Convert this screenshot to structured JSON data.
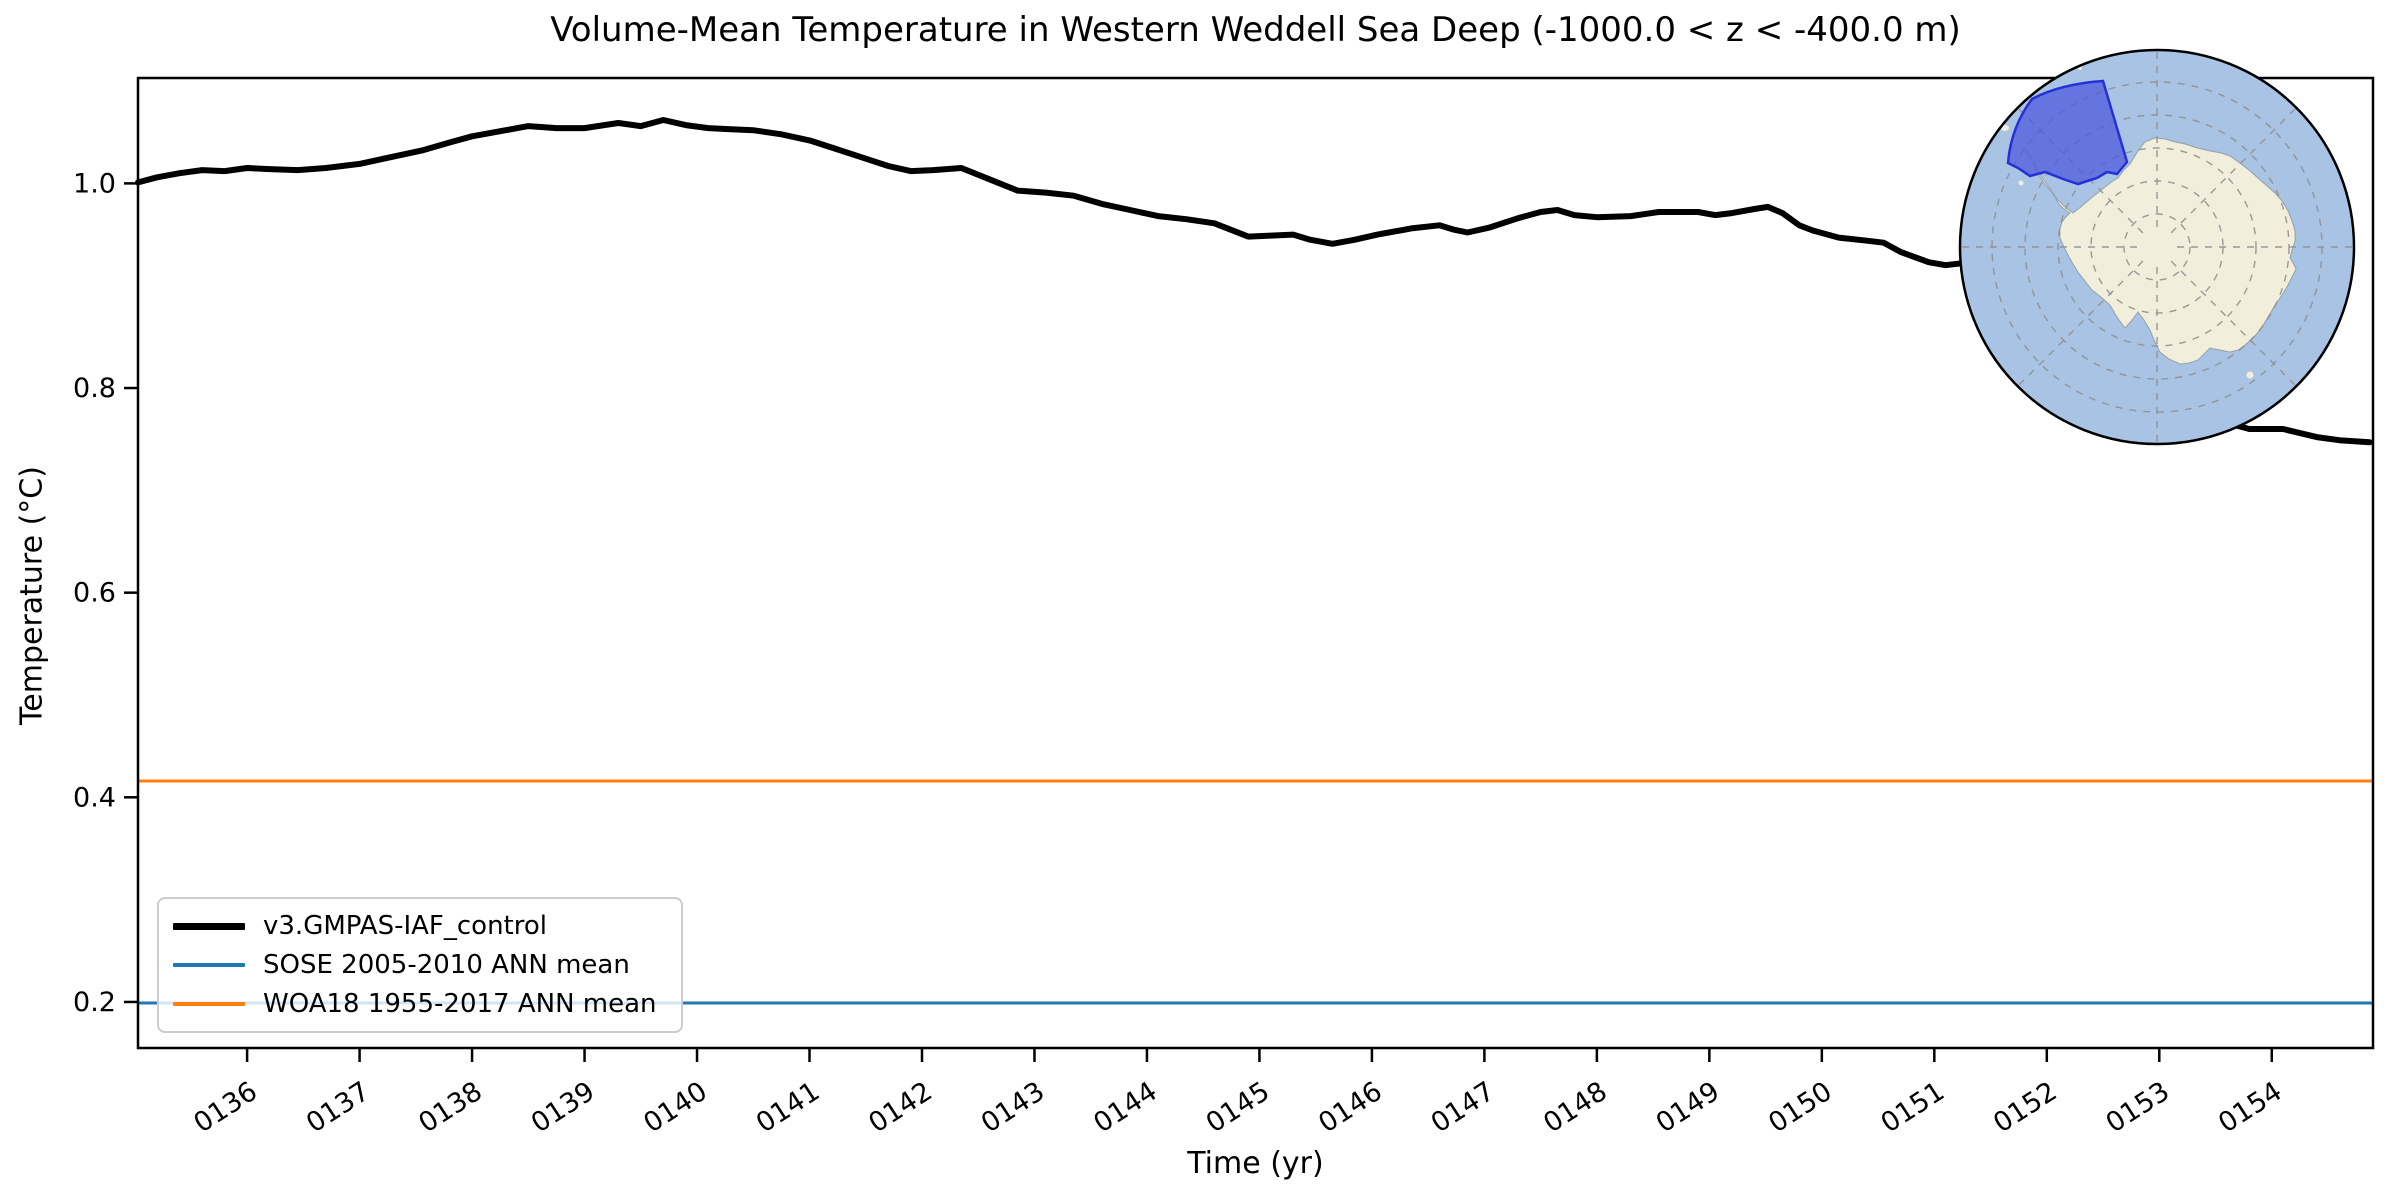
{
  "chart_data": {
    "type": "line",
    "title": "Volume-Mean Temperature in Western Weddell Sea Deep (-1000.0 < z < -400.0 m)",
    "xlabel": "Time (yr)",
    "ylabel": "Temperature (°C)",
    "xlim": [
      135.03,
      154.9
    ],
    "ylim": [
      0.155,
      1.103
    ],
    "grid": false,
    "legend_position": "lower left",
    "x_tick_values": [
      136,
      137,
      138,
      139,
      140,
      141,
      142,
      143,
      144,
      145,
      146,
      147,
      148,
      149,
      150,
      151,
      152,
      153,
      154
    ],
    "x_tick_labels": [
      "0136",
      "0137",
      "0138",
      "0139",
      "0140",
      "0141",
      "0142",
      "0143",
      "0144",
      "0145",
      "0146",
      "0147",
      "0148",
      "0149",
      "0150",
      "0151",
      "0152",
      "0153",
      "0154"
    ],
    "y_tick_values": [
      0.2,
      0.4,
      0.6,
      0.8,
      1.0
    ],
    "y_tick_labels": [
      "0.2",
      "0.4",
      "0.6",
      "0.8",
      "1.0"
    ],
    "series": [
      {
        "name": "v3.GMPAS-IAF_control",
        "color": "#000000",
        "width": 6,
        "points": [
          [
            135.03,
            1.001
          ],
          [
            135.2,
            1.006
          ],
          [
            135.4,
            1.01
          ],
          [
            135.6,
            1.013
          ],
          [
            135.8,
            1.012
          ],
          [
            136.0,
            1.015
          ],
          [
            136.2,
            1.014
          ],
          [
            136.45,
            1.013
          ],
          [
            136.7,
            1.015
          ],
          [
            137.0,
            1.019
          ],
          [
            137.25,
            1.025
          ],
          [
            137.55,
            1.032
          ],
          [
            137.8,
            1.04
          ],
          [
            138.0,
            1.046
          ],
          [
            138.3,
            1.052
          ],
          [
            138.5,
            1.056
          ],
          [
            138.75,
            1.054
          ],
          [
            139.0,
            1.054
          ],
          [
            139.3,
            1.059
          ],
          [
            139.5,
            1.056
          ],
          [
            139.7,
            1.062
          ],
          [
            139.9,
            1.057
          ],
          [
            140.1,
            1.054
          ],
          [
            140.3,
            1.053
          ],
          [
            140.5,
            1.052
          ],
          [
            140.75,
            1.048
          ],
          [
            141.0,
            1.042
          ],
          [
            141.2,
            1.035
          ],
          [
            141.45,
            1.026
          ],
          [
            141.7,
            1.017
          ],
          [
            141.9,
            1.012
          ],
          [
            142.1,
            1.013
          ],
          [
            142.35,
            1.015
          ],
          [
            142.6,
            1.004
          ],
          [
            142.85,
            0.993
          ],
          [
            143.1,
            0.991
          ],
          [
            143.35,
            0.988
          ],
          [
            143.6,
            0.98
          ],
          [
            143.85,
            0.974
          ],
          [
            144.1,
            0.968
          ],
          [
            144.35,
            0.965
          ],
          [
            144.6,
            0.961
          ],
          [
            144.9,
            0.948
          ],
          [
            145.1,
            0.949
          ],
          [
            145.3,
            0.95
          ],
          [
            145.45,
            0.945
          ],
          [
            145.65,
            0.941
          ],
          [
            145.85,
            0.945
          ],
          [
            146.05,
            0.95
          ],
          [
            146.35,
            0.956
          ],
          [
            146.6,
            0.959
          ],
          [
            146.72,
            0.955
          ],
          [
            146.85,
            0.952
          ],
          [
            147.05,
            0.957
          ],
          [
            147.3,
            0.966
          ],
          [
            147.5,
            0.972
          ],
          [
            147.65,
            0.974
          ],
          [
            147.8,
            0.969
          ],
          [
            148.0,
            0.967
          ],
          [
            148.3,
            0.968
          ],
          [
            148.55,
            0.972
          ],
          [
            148.9,
            0.972
          ],
          [
            149.05,
            0.969
          ],
          [
            149.2,
            0.971
          ],
          [
            149.4,
            0.975
          ],
          [
            149.52,
            0.977
          ],
          [
            149.65,
            0.971
          ],
          [
            149.8,
            0.959
          ],
          [
            149.92,
            0.954
          ],
          [
            150.15,
            0.947
          ],
          [
            150.4,
            0.944
          ],
          [
            150.55,
            0.942
          ],
          [
            150.7,
            0.933
          ],
          [
            150.95,
            0.923
          ],
          [
            151.1,
            0.92
          ],
          [
            151.25,
            0.922
          ],
          [
            151.45,
            0.914
          ],
          [
            151.65,
            0.903
          ],
          [
            151.85,
            0.89
          ],
          [
            152.05,
            0.874
          ],
          [
            152.25,
            0.86
          ],
          [
            152.45,
            0.847
          ],
          [
            152.65,
            0.834
          ],
          [
            152.85,
            0.82
          ],
          [
            153.05,
            0.803
          ],
          [
            153.25,
            0.788
          ],
          [
            153.45,
            0.774
          ],
          [
            153.6,
            0.766
          ],
          [
            153.8,
            0.76
          ],
          [
            154.1,
            0.76
          ],
          [
            154.25,
            0.756
          ],
          [
            154.4,
            0.752
          ],
          [
            154.6,
            0.749
          ],
          [
            154.87,
            0.747
          ]
        ]
      },
      {
        "name": "SOSE 2005-2010 ANN mean",
        "color": "#1f77b4",
        "width": 3,
        "constant": 0.199
      },
      {
        "name": "WOA18 1955-2017 ANN mean",
        "color": "#ff7f0e",
        "width": 3,
        "constant": 0.416
      }
    ]
  },
  "inset_map": {
    "description": "south-polar-stereographic-antarctica-inset",
    "colors": {
      "ocean": "#a9c3e5",
      "land": "#f1efdb",
      "graticule": "#8f8f8f",
      "region_fill": "#4a58dd",
      "region_border": "#2531d6",
      "border": "#000000"
    }
  }
}
